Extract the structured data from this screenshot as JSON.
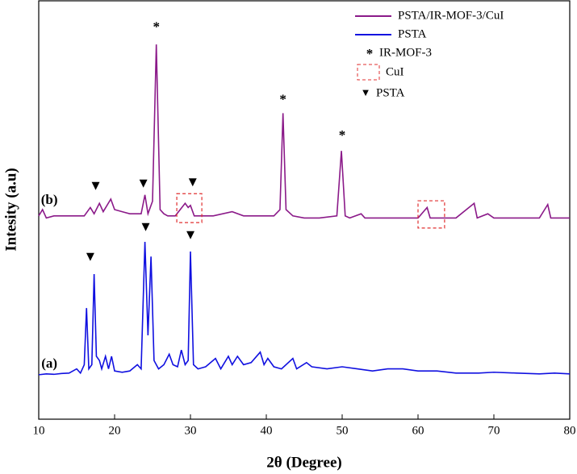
{
  "chart_data": {
    "type": "line",
    "x_label": "2θ (Degree)",
    "y_label": "Intesity (a.u)",
    "xlim": [
      10,
      80
    ],
    "xticks": [
      10,
      20,
      30,
      40,
      50,
      60,
      70,
      80
    ],
    "ylim": [
      0,
      100
    ],
    "series": [
      {
        "name": "PSTA/IR-MOF-3/CuI",
        "color": "#8b1a89",
        "x": [
          10,
          10.5,
          11,
          12,
          14,
          16,
          16.8,
          17.3,
          18,
          18.5,
          19.5,
          20,
          21,
          22,
          23,
          23.5,
          24,
          24.4,
          25,
          25.5,
          26,
          26.5,
          27,
          28,
          29.3,
          29.7,
          30,
          30.5,
          31,
          33,
          35.5,
          37,
          39,
          41,
          41.8,
          42.2,
          42.6,
          43.5,
          45,
          47,
          49.3,
          49.9,
          50.4,
          51,
          52.5,
          53,
          55,
          58,
          60,
          61.2,
          61.6,
          63,
          65,
          67.4,
          67.8,
          69.2,
          70,
          73,
          76,
          77.1,
          77.5,
          80
        ],
        "values": [
          48.5,
          50,
          48,
          48.5,
          48.5,
          48.5,
          50.5,
          49,
          51.5,
          49.5,
          52.5,
          50,
          49.5,
          49,
          49,
          49,
          53.5,
          49,
          52,
          89.4,
          50,
          49,
          48.5,
          48.5,
          51.5,
          50.5,
          51,
          48.5,
          48.5,
          48.5,
          49.5,
          48.5,
          48.5,
          48.5,
          50,
          73,
          50,
          48.5,
          48,
          48,
          48.5,
          64,
          48.5,
          48,
          49,
          48,
          48,
          48,
          48,
          50.5,
          48,
          48,
          48,
          51.5,
          48,
          49,
          48,
          48,
          48,
          51.2,
          48,
          48
        ]
      },
      {
        "name": "PSTA",
        "color": "#1010e0",
        "x": [
          10,
          11,
          12,
          13,
          14,
          15,
          15.5,
          16,
          16.3,
          16.6,
          17,
          17.3,
          17.6,
          18,
          18.3,
          18.8,
          19.2,
          19.6,
          20,
          21,
          22,
          23,
          23.5,
          24,
          24.4,
          24.8,
          25.2,
          25.8,
          26.5,
          27.2,
          27.7,
          28.3,
          28.8,
          29.3,
          29.7,
          30,
          30.4,
          31,
          32,
          33.3,
          34,
          35,
          35.5,
          36.2,
          37,
          38,
          39.2,
          39.7,
          40.2,
          41,
          42,
          43.5,
          44,
          45.3,
          46,
          48,
          50,
          52,
          54,
          56,
          58,
          60,
          62.5,
          65,
          68,
          70,
          73,
          76,
          78,
          80
        ],
        "values": [
          10.6,
          10.8,
          10.7,
          10.9,
          11,
          12,
          11,
          13,
          26.5,
          12,
          13,
          34.6,
          15,
          14,
          12,
          15,
          12,
          15,
          11.5,
          11.2,
          11.5,
          13,
          12,
          42.3,
          20,
          38.8,
          14,
          12,
          13,
          15.5,
          13,
          12.5,
          16.5,
          13,
          14,
          40,
          13,
          12,
          12.5,
          14.5,
          12,
          15,
          13,
          15,
          13,
          13.5,
          16,
          13,
          14.5,
          12.5,
          12,
          14.5,
          12,
          13.5,
          12.5,
          12,
          12.5,
          12,
          11.5,
          12,
          12,
          11.5,
          11.5,
          11,
          11,
          11.2,
          11,
          10.8,
          11,
          10.8
        ]
      }
    ],
    "legend_symbols": {
      "asterisk": {
        "mark": "*",
        "label": "IR-MOF-3"
      },
      "box": {
        "label": "CuI",
        "color": "#e03030"
      },
      "triangle": {
        "mark": "▼",
        "label": "PSTA"
      }
    },
    "annotations": [
      {
        "text": "*",
        "x": 25.5,
        "y": 93.3
      },
      {
        "text": "*",
        "x": 42.2,
        "y": 76
      },
      {
        "text": "*",
        "x": 50,
        "y": 67.5
      },
      {
        "text": "▼",
        "x": 17.5,
        "y": 55.5
      },
      {
        "text": "▼",
        "x": 23.8,
        "y": 56
      },
      {
        "text": "▼",
        "x": 30.3,
        "y": 56.3
      },
      {
        "text": "▼",
        "x": 16.8,
        "y": 38.5
      },
      {
        "text": "▼",
        "x": 24.1,
        "y": 45.7
      },
      {
        "text": "▼",
        "x": 30,
        "y": 43.7
      },
      {
        "text": "(a)",
        "x": 11.4,
        "y": 13.1
      },
      {
        "text": "(b)",
        "x": 11.4,
        "y": 52.1
      }
    ],
    "cui_boxes": [
      {
        "x": [
          28.2,
          31.5
        ],
        "y": [
          46.9,
          53.8
        ]
      },
      {
        "x": [
          60,
          63.5
        ],
        "y": [
          45.6,
          52.1
        ]
      }
    ]
  }
}
